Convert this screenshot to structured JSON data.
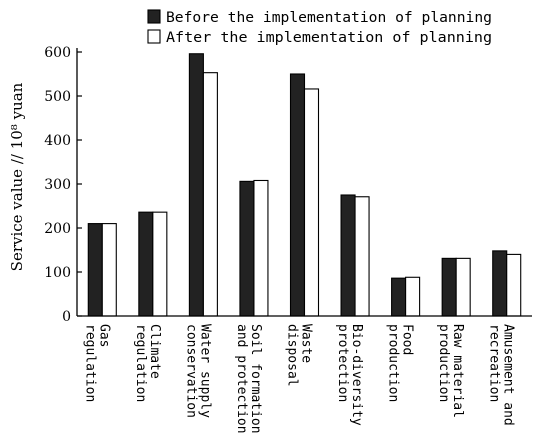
{
  "chart_data": {
    "type": "bar",
    "title": "",
    "xlabel": "",
    "ylabel": "Service value // 10⁸ yuan",
    "ylim": [
      0,
      600
    ],
    "yticks": [
      0,
      100,
      200,
      300,
      400,
      500,
      600
    ],
    "legend_position": "top-right",
    "categories": [
      "Gas regulation",
      "Climate regulation",
      "Water supply conservation",
      "Soil formation and protection",
      "Waste disposal",
      "Bio-diversity protection",
      "Food production",
      "Raw material production",
      "Amusement and recreation"
    ],
    "category_lines": [
      [
        "Gas",
        "regulation"
      ],
      [
        "Climate",
        "regulation"
      ],
      [
        "Water supply",
        "conservation"
      ],
      [
        "Soil formation",
        "and protection"
      ],
      [
        "Waste",
        "disposal"
      ],
      [
        "Bio-diversity",
        "protection"
      ],
      [
        "Food",
        "production"
      ],
      [
        "Raw material",
        "production"
      ],
      [
        "Amusement and",
        "recreation"
      ]
    ],
    "series": [
      {
        "name": "Before the implementation of planning",
        "color": "#222222",
        "fill": "solid",
        "values": [
          210,
          236,
          596,
          306,
          550,
          275,
          86,
          131,
          148
        ]
      },
      {
        "name": "After the implementation of planning",
        "color": "#ffffff",
        "fill": "outline",
        "values": [
          210,
          236,
          553,
          308,
          516,
          271,
          88,
          131,
          140
        ]
      }
    ]
  }
}
